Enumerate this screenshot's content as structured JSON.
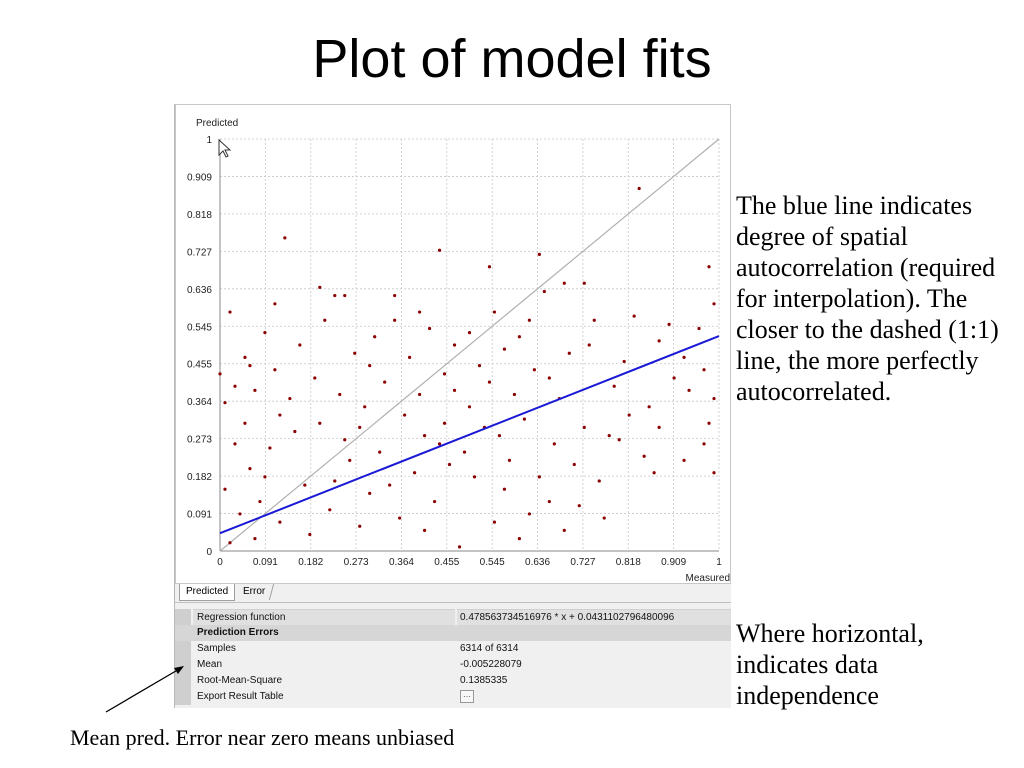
{
  "slide": {
    "title": "Plot of model fits",
    "side_text_1": "The blue line indicates degree of spatial autocorrelation (required for interpolation). The closer to the dashed (1:1) line, the more perfectly autocorrelated.",
    "side_text_2": "Where horizontal, indicates data independence",
    "callout": "Mean pred. Error near zero means unbiased"
  },
  "tabs": [
    {
      "label": "Predicted",
      "active": true
    },
    {
      "label": "Error",
      "active": false
    }
  ],
  "results": {
    "regression_label": "Regression function",
    "regression_value": "0.478563734516976 * x + 0.0431102796480096",
    "errors_header": "Prediction Errors",
    "samples_label": "Samples",
    "samples_value": "6314 of 6314",
    "mean_label": "Mean",
    "mean_value": "-0.005228079",
    "rms_label": "Root-Mean-Square",
    "rms_value": "0.1385335",
    "export_label": "Export Result Table"
  },
  "chart_data": {
    "type": "scatter",
    "xlabel": "Measured",
    "ylabel": "Predicted",
    "xlim": [
      0,
      1
    ],
    "ylim": [
      0,
      1
    ],
    "xticks": [
      "0",
      "0.091",
      "0.182",
      "0.273",
      "0.364",
      "0.455",
      "0.545",
      "0.636",
      "0.727",
      "0.818",
      "0.909",
      "1"
    ],
    "yticks": [
      "0",
      "0.091",
      "0.182",
      "0.273",
      "0.364",
      "0.455",
      "0.545",
      "0.636",
      "0.727",
      "0.818",
      "0.909",
      "1"
    ],
    "grid": true,
    "regression": {
      "slope": 0.478563734516976,
      "intercept": 0.0431102796480096,
      "color": "#1a1ad6"
    },
    "reference_line": {
      "slope": 1,
      "intercept": 0,
      "color": "#b0b0b0"
    },
    "point_color": "#8b0000",
    "points": [
      [
        0.84,
        0.88
      ],
      [
        0.13,
        0.76
      ],
      [
        0.64,
        0.72
      ],
      [
        0.44,
        0.73
      ],
      [
        0.2,
        0.64
      ],
      [
        0.23,
        0.62
      ],
      [
        0.25,
        0.62
      ],
      [
        0.65,
        0.63
      ],
      [
        0.69,
        0.65
      ],
      [
        0.73,
        0.65
      ],
      [
        0.98,
        0.69
      ],
      [
        0.54,
        0.69
      ],
      [
        0.35,
        0.62
      ],
      [
        0.99,
        0.6
      ],
      [
        0.62,
        0.56
      ],
      [
        0.75,
        0.56
      ],
      [
        0.83,
        0.57
      ],
      [
        0.9,
        0.55
      ],
      [
        0.96,
        0.54
      ],
      [
        0.93,
        0.47
      ],
      [
        0.97,
        0.44
      ],
      [
        0.94,
        0.39
      ],
      [
        0.99,
        0.37
      ],
      [
        0.98,
        0.31
      ],
      [
        0.97,
        0.26
      ],
      [
        0.99,
        0.19
      ],
      [
        0.6,
        0.03
      ],
      [
        0.55,
        0.07
      ],
      [
        0.48,
        0.01
      ],
      [
        0.41,
        0.05
      ],
      [
        0.66,
        0.12
      ],
      [
        0.71,
        0.21
      ],
      [
        0.78,
        0.28
      ],
      [
        0.82,
        0.33
      ],
      [
        0.88,
        0.3
      ],
      [
        0.85,
        0.23
      ],
      [
        0.76,
        0.17
      ],
      [
        0.67,
        0.26
      ],
      [
        0.59,
        0.38
      ],
      [
        0.52,
        0.45
      ],
      [
        0.47,
        0.5
      ],
      [
        0.42,
        0.54
      ],
      [
        0.38,
        0.47
      ],
      [
        0.31,
        0.52
      ],
      [
        0.27,
        0.48
      ],
      [
        0.21,
        0.56
      ],
      [
        0.16,
        0.5
      ],
      [
        0.09,
        0.53
      ],
      [
        0.05,
        0.47
      ],
      [
        0.02,
        0.58
      ],
      [
        0.0,
        0.43
      ],
      [
        0.01,
        0.36
      ],
      [
        0.03,
        0.4
      ],
      [
        0.07,
        0.39
      ],
      [
        0.11,
        0.44
      ],
      [
        0.14,
        0.37
      ],
      [
        0.19,
        0.42
      ],
      [
        0.24,
        0.38
      ],
      [
        0.29,
        0.35
      ],
      [
        0.33,
        0.41
      ],
      [
        0.37,
        0.33
      ],
      [
        0.4,
        0.38
      ],
      [
        0.45,
        0.31
      ],
      [
        0.5,
        0.35
      ],
      [
        0.56,
        0.28
      ],
      [
        0.61,
        0.32
      ],
      [
        0.68,
        0.37
      ],
      [
        0.73,
        0.3
      ],
      [
        0.79,
        0.4
      ],
      [
        0.86,
        0.35
      ],
      [
        0.91,
        0.42
      ],
      [
        0.57,
        0.49
      ],
      [
        0.63,
        0.44
      ],
      [
        0.7,
        0.48
      ],
      [
        0.81,
        0.46
      ],
      [
        0.88,
        0.51
      ],
      [
        0.46,
        0.21
      ],
      [
        0.51,
        0.18
      ],
      [
        0.57,
        0.15
      ],
      [
        0.62,
        0.09
      ],
      [
        0.69,
        0.05
      ],
      [
        0.43,
        0.12
      ],
      [
        0.36,
        0.08
      ],
      [
        0.3,
        0.14
      ],
      [
        0.26,
        0.22
      ],
      [
        0.22,
        0.1
      ],
      [
        0.17,
        0.16
      ],
      [
        0.12,
        0.07
      ],
      [
        0.08,
        0.12
      ],
      [
        0.04,
        0.09
      ],
      [
        0.06,
        0.2
      ],
      [
        0.1,
        0.25
      ],
      [
        0.15,
        0.29
      ],
      [
        0.2,
        0.31
      ],
      [
        0.25,
        0.27
      ],
      [
        0.32,
        0.24
      ],
      [
        0.39,
        0.19
      ],
      [
        0.44,
        0.26
      ],
      [
        0.49,
        0.24
      ],
      [
        0.53,
        0.3
      ],
      [
        0.58,
        0.22
      ],
      [
        0.64,
        0.18
      ],
      [
        0.72,
        0.11
      ],
      [
        0.77,
        0.08
      ],
      [
        0.02,
        0.02
      ],
      [
        0.01,
        0.15
      ],
      [
        0.03,
        0.26
      ],
      [
        0.05,
        0.31
      ],
      [
        0.07,
        0.03
      ],
      [
        0.09,
        0.18
      ],
      [
        0.12,
        0.33
      ],
      [
        0.18,
        0.04
      ],
      [
        0.23,
        0.17
      ],
      [
        0.28,
        0.06
      ],
      [
        0.34,
        0.16
      ],
      [
        0.41,
        0.28
      ],
      [
        0.47,
        0.39
      ],
      [
        0.54,
        0.41
      ],
      [
        0.6,
        0.52
      ],
      [
        0.66,
        0.42
      ],
      [
        0.74,
        0.5
      ],
      [
        0.8,
        0.27
      ],
      [
        0.87,
        0.19
      ],
      [
        0.93,
        0.22
      ],
      [
        0.11,
        0.6
      ],
      [
        0.06,
        0.45
      ],
      [
        0.35,
        0.56
      ],
      [
        0.4,
        0.58
      ],
      [
        0.5,
        0.53
      ],
      [
        0.55,
        0.58
      ],
      [
        0.45,
        0.43
      ],
      [
        0.3,
        0.45
      ],
      [
        0.28,
        0.3
      ]
    ]
  }
}
